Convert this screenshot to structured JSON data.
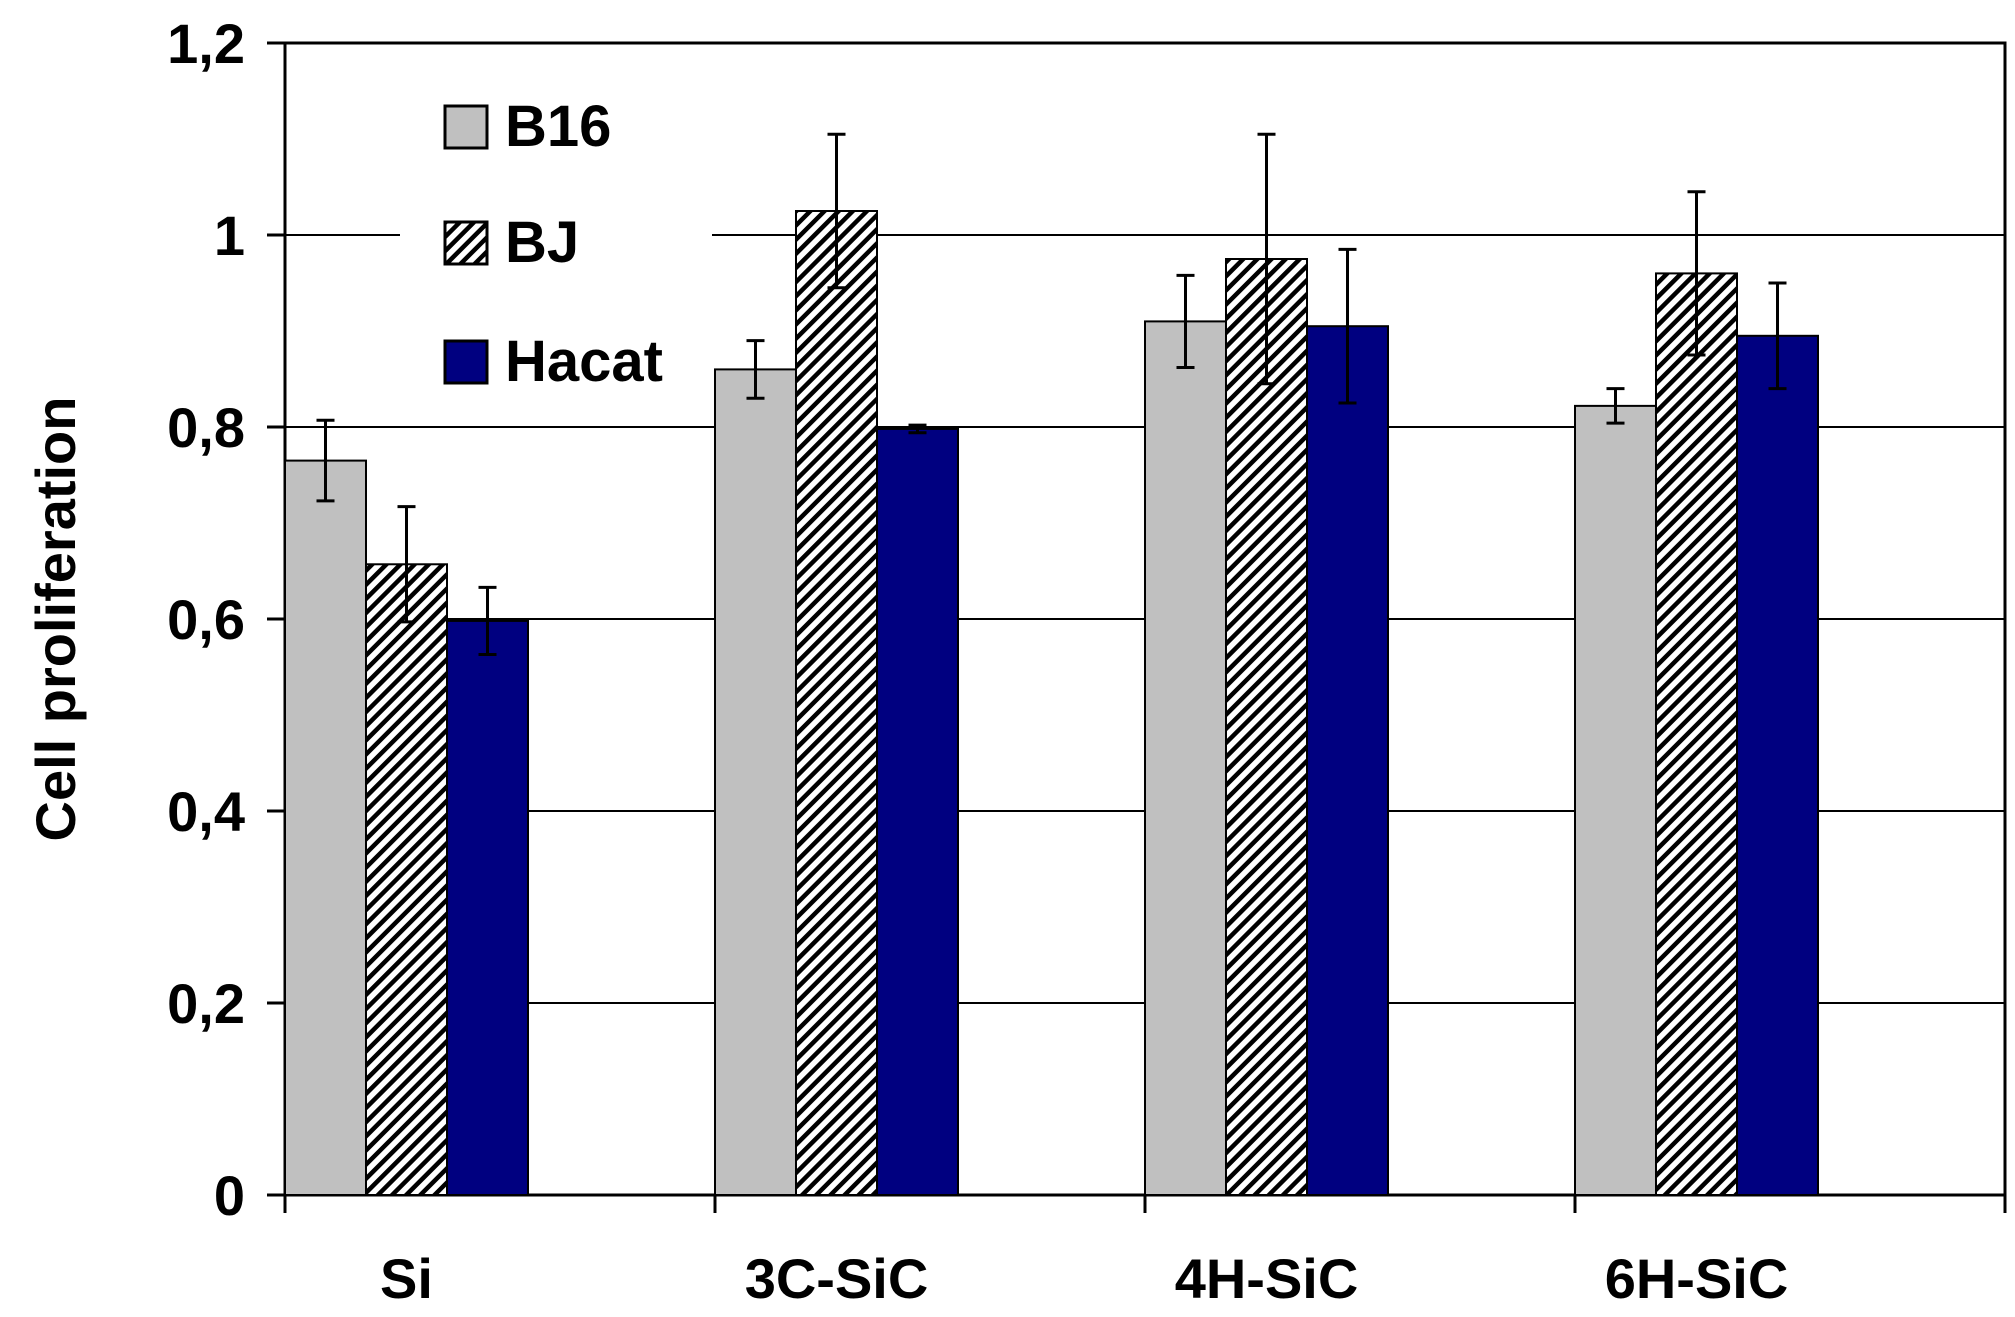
{
  "chart_data": {
    "type": "bar",
    "title": "",
    "xlabel": "",
    "ylabel": "Cell proliferation",
    "ylim": [
      0,
      1.2
    ],
    "yticks": [
      "0",
      "0,2",
      "0,4",
      "0,6",
      "0,8",
      "1",
      "1,2"
    ],
    "grid": true,
    "legend_position": "top-left",
    "categories": [
      "Si",
      "3C-SiC",
      "4H-SiC",
      "6H-SiC"
    ],
    "series": [
      {
        "name": "B16",
        "pattern": "solid",
        "color": "#c0c0c0",
        "values": [
          0.765,
          0.86,
          0.91,
          0.822
        ],
        "errors": [
          0.042,
          0.03,
          0.048,
          0.018
        ]
      },
      {
        "name": "BJ",
        "pattern": "hatched",
        "color": "#ffffff",
        "values": [
          0.657,
          1.025,
          0.975,
          0.96
        ],
        "errors": [
          0.06,
          0.08,
          0.13,
          0.085
        ]
      },
      {
        "name": "Hacat",
        "pattern": "solid",
        "color": "#000080",
        "values": [
          0.598,
          0.798,
          0.905,
          0.895
        ],
        "errors": [
          0.035,
          0.004,
          0.08,
          0.055
        ]
      }
    ]
  }
}
